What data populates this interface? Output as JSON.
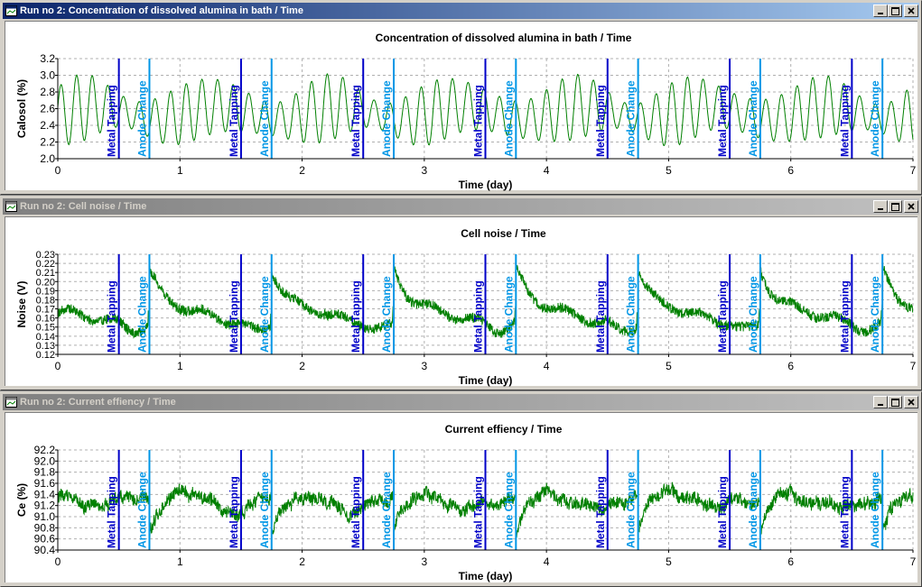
{
  "windows": [
    {
      "title": "Run no 2: Concentration of dissolved alumina in bath / Time",
      "active": true,
      "buttons": {
        "minimize": "minimize",
        "maximize": "maximize",
        "close": "close"
      }
    },
    {
      "title": "Run no 2: Cell noise / Time",
      "active": false,
      "buttons": {
        "minimize": "minimize",
        "maximize": "maximize",
        "close": "close"
      }
    },
    {
      "title": "Run no 2: Current effiency / Time",
      "active": false,
      "buttons": {
        "minimize": "minimize",
        "maximize": "maximize",
        "close": "close"
      }
    }
  ],
  "events": {
    "metal_tapping_label": "Metal Tapping",
    "anode_change_label": "Anode Change",
    "metal_tapping_color": "#0000c8",
    "anode_change_color": "#0096e6",
    "metal_tapping_x": [
      0.5,
      1.5,
      2.5,
      3.5,
      4.5,
      5.5,
      6.5
    ],
    "anode_change_x": [
      0.75,
      1.75,
      2.75,
      3.75,
      4.75,
      5.75,
      6.75
    ]
  },
  "series_color": "#008000",
  "chart_data": [
    {
      "type": "line",
      "title": "Concentration of dissolved alumina in bath / Time",
      "xlabel": "Time (day)",
      "ylabel": "Calosol (%)",
      "xlim": [
        0,
        7
      ],
      "ylim": [
        2.0,
        3.2
      ],
      "xticks": [
        "0",
        "1",
        "2",
        "3",
        "4",
        "5",
        "6",
        "7"
      ],
      "yticks": [
        "2.0",
        "2.2",
        "2.4",
        "2.6",
        "2.8",
        "3.0",
        "3.2"
      ],
      "grid": true,
      "y_mean": 2.55,
      "y_amplitude": 0.38,
      "approx_cycles_per_day": 7.8
    },
    {
      "type": "line",
      "title": "Cell noise / Time",
      "xlabel": "Time (day)",
      "ylabel": "Noise (V)",
      "xlim": [
        0,
        7
      ],
      "ylim": [
        0.12,
        0.23
      ],
      "xticks": [
        "0",
        "1",
        "2",
        "3",
        "4",
        "5",
        "6",
        "7"
      ],
      "yticks": [
        "0.12",
        "0.13",
        "0.14",
        "0.15",
        "0.16",
        "0.17",
        "0.18",
        "0.19",
        "0.20",
        "0.21",
        "0.22",
        "0.23"
      ],
      "grid": true,
      "baseline": 0.16,
      "peak_after_anode_change": 0.22
    },
    {
      "type": "line",
      "title": "Current effiency / Time",
      "xlabel": "Time (day)",
      "ylabel": "Ce (%)",
      "xlim": [
        0,
        7
      ],
      "ylim": [
        90.4,
        92.2
      ],
      "xticks": [
        "0",
        "1",
        "2",
        "3",
        "4",
        "5",
        "6",
        "7"
      ],
      "yticks": [
        "90.4",
        "90.6",
        "90.8",
        "91.0",
        "91.2",
        "91.4",
        "91.6",
        "91.8",
        "92.0",
        "92.2"
      ],
      "grid": true,
      "y_mean": 91.3,
      "dip_after_anode_change": 90.6
    }
  ]
}
